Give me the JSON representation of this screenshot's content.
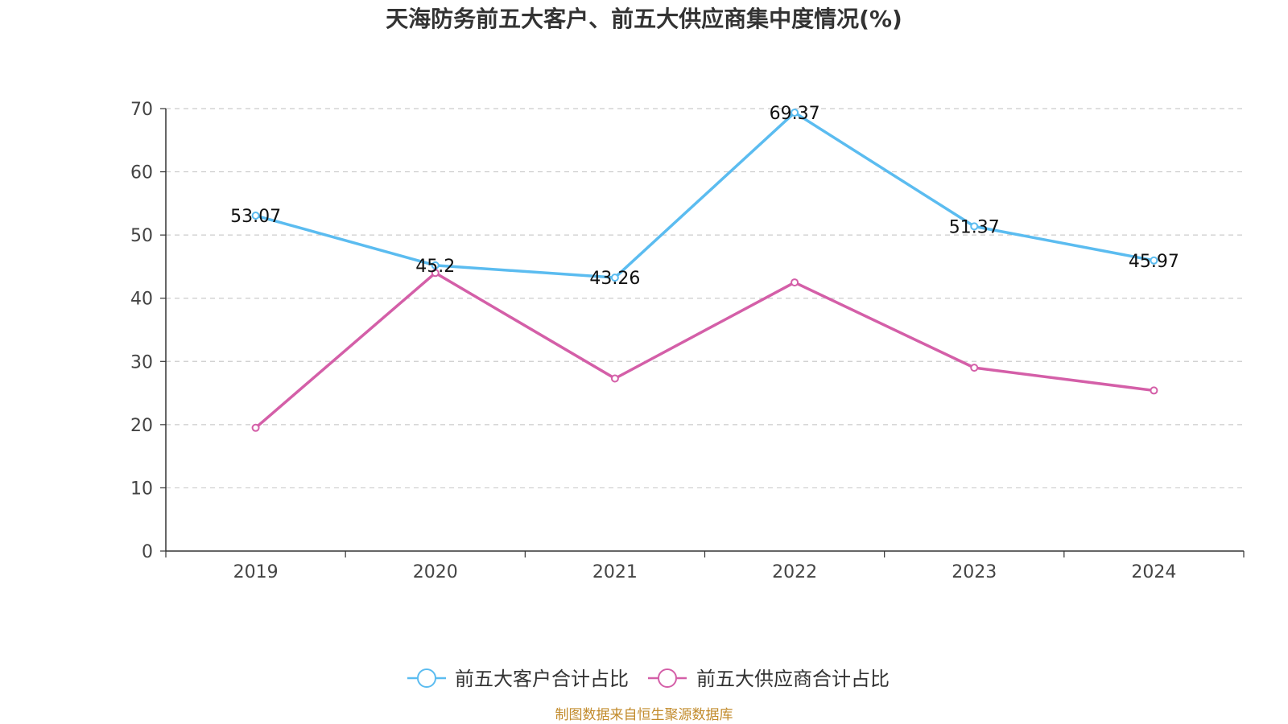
{
  "chart_data": {
    "type": "line",
    "title": "天海防务前五大客户、前五大供应商集中度情况(%)",
    "categories": [
      "2019",
      "2020",
      "2021",
      "2022",
      "2023",
      "2024"
    ],
    "ylim": [
      0,
      70
    ],
    "yticks": [
      0,
      10,
      20,
      30,
      40,
      50,
      60,
      70
    ],
    "grid": true,
    "legend_position": "bottom",
    "series": [
      {
        "name": "前五大客户合计占比",
        "color": "#5bbcf0",
        "values": [
          53.07,
          45.2,
          43.26,
          69.37,
          51.37,
          45.97
        ],
        "labels": [
          "53.07",
          "45.2",
          "43.26",
          "69.37",
          "51.37",
          "45.97"
        ]
      },
      {
        "name": "前五大供应商合计占比",
        "color": "#d45fa8",
        "values": [
          19.5,
          44.0,
          27.3,
          42.5,
          29.0,
          25.4
        ]
      }
    ],
    "source": "制图数据来自恒生聚源数据库"
  }
}
